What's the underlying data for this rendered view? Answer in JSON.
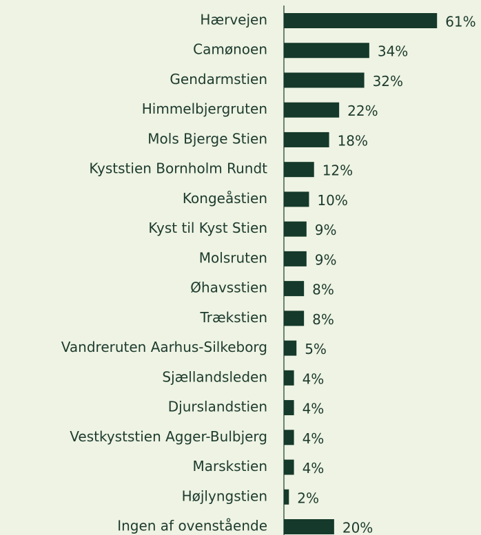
{
  "chart_data": {
    "type": "barh",
    "categories": [
      "Hærvejen",
      "Camønoen",
      "Gendarmstien",
      "Himmelbjergruten",
      "Mols Bjerge Stien",
      "Kyststien Bornholm Rundt",
      "Kongeåstien",
      "Kyst til Kyst Stien",
      "Molsruten",
      "Øhavsstien",
      "Trækstien",
      "Vandreruten Aarhus-Silkeborg",
      "Sjællandsleden",
      "Djurslandstien",
      "Vestkyststien Agger-Bulbjerg",
      "Marskstien",
      "Højlyngstien",
      "Ingen af ovenstående"
    ],
    "values": [
      61,
      34,
      32,
      22,
      18,
      12,
      10,
      9,
      9,
      8,
      8,
      5,
      4,
      4,
      4,
      4,
      2,
      20
    ],
    "value_labels": [
      "61%",
      "34%",
      "32%",
      "22%",
      "18%",
      "12%",
      "10%",
      "9%",
      "9%",
      "8%",
      "8%",
      "5%",
      "4%",
      "4%",
      "4%",
      "4%",
      "2%",
      "20%"
    ],
    "color": "#15392a",
    "xlim": [
      0,
      70
    ]
  }
}
